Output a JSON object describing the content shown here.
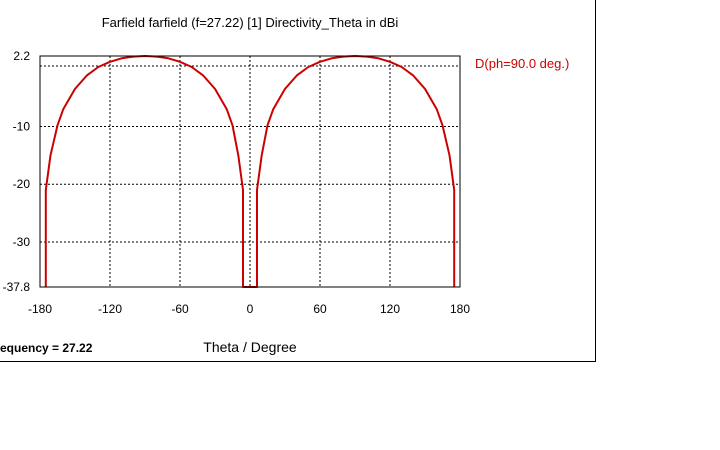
{
  "chart_data": {
    "type": "line",
    "title": "Farfield farfield (f=27.22) [1] Directivity_Theta in dBi",
    "xlabel": "Theta / Degree",
    "ylabel": "",
    "xlim": [
      -180,
      180
    ],
    "ylim": [
      -37.8,
      2.2
    ],
    "x_ticks": [
      -180,
      -120,
      -60,
      0,
      60,
      120,
      180
    ],
    "y_ticks": [
      2.2,
      -10,
      -20,
      -30,
      -37.8
    ],
    "grid": true,
    "legend_placement": "top-right",
    "series": [
      {
        "name": "D(ph=90.0 deg.)",
        "color": "#cc0000",
        "x": [
          -175,
          -175,
          -171,
          -165,
          -160,
          -150,
          -140,
          -130,
          -120,
          -110,
          -100,
          -90,
          -80,
          -70,
          -60,
          -50,
          -40,
          -30,
          -20,
          -15,
          -10,
          -6,
          -6,
          -5,
          -5,
          5,
          5,
          6,
          6,
          10,
          15,
          20,
          30,
          40,
          50,
          60,
          70,
          80,
          90,
          100,
          110,
          120,
          130,
          140,
          150,
          160,
          165,
          171,
          175,
          175
        ],
        "y": [
          -37.8,
          -21,
          -15,
          -9.8,
          -7,
          -3.5,
          -1.2,
          0.3,
          1.2,
          1.8,
          2.1,
          2.2,
          2.1,
          1.8,
          1.2,
          0.3,
          -1.2,
          -3.5,
          -7,
          -9.8,
          -15,
          -21,
          -37.8,
          -37.8,
          -37.8,
          -37.8,
          -37.8,
          -37.8,
          -21,
          -15,
          -9.8,
          -7,
          -3.5,
          -1.2,
          0.3,
          1.2,
          1.8,
          2.1,
          2.2,
          2.1,
          1.8,
          1.2,
          0.3,
          -1.2,
          -3.5,
          -7,
          -9.8,
          -15,
          -21,
          -37.8
        ]
      }
    ]
  },
  "footer": {
    "frequency_text": "equency = 27.22"
  }
}
